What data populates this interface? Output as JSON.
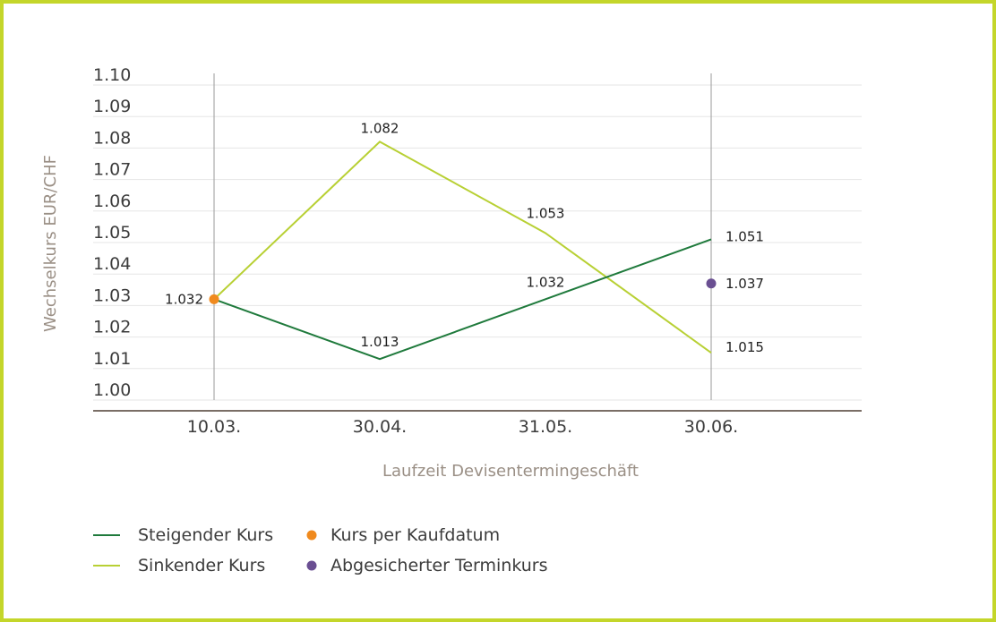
{
  "colors": {
    "frame": "#c4d62a",
    "steigend": "#1f7a3c",
    "sinkend": "#b8d034",
    "kaufdatum": "#f08a1e",
    "terminkurs": "#6a4f92",
    "grid": "#e6e6e6",
    "axis": "#7a6e66",
    "refline": "#9a9a9a"
  },
  "chart_data": {
    "type": "line",
    "categories": [
      "10.03.",
      "30.04.",
      "31.05.",
      "30.06."
    ],
    "ylim": [
      1.0,
      1.1
    ],
    "yticks": [
      "1.00",
      "1.01",
      "1.02",
      "1.03",
      "1.04",
      "1.05",
      "1.06",
      "1.07",
      "1.08",
      "1.09",
      "1.10"
    ],
    "ylabel": "Wechselkurs EUR/CHF",
    "xlabel": "Laufzeit Devisentermingeschäft",
    "grid": true,
    "series": [
      {
        "name": "Steigender Kurs",
        "values": [
          1.032,
          1.013,
          1.032,
          1.051
        ],
        "labels": [
          "1.032",
          "1.013",
          "1.032",
          "1.051"
        ]
      },
      {
        "name": "Sinkender Kurs",
        "values": [
          1.032,
          1.082,
          1.053,
          1.015
        ],
        "labels": [
          "",
          "1.082",
          "1.053",
          "1.015"
        ]
      }
    ],
    "points": [
      {
        "name": "Kurs per Kaufdatum",
        "category": "10.03.",
        "value": 1.032
      },
      {
        "name": "Abgesicherter Terminkurs",
        "category": "30.06.",
        "value": 1.037,
        "label": "1.037"
      }
    ],
    "legend": [
      {
        "label": "Steigender Kurs",
        "marker": "line",
        "color_key": "steigend"
      },
      {
        "label": "Sinkender Kurs",
        "marker": "line",
        "color_key": "sinkend"
      },
      {
        "label": "Kurs per Kaufdatum",
        "marker": "dot",
        "color_key": "kaufdatum"
      },
      {
        "label": "Abgesicherter Terminkurs",
        "marker": "dot",
        "color_key": "terminkurs"
      }
    ],
    "legend_position": "bottom-left"
  }
}
